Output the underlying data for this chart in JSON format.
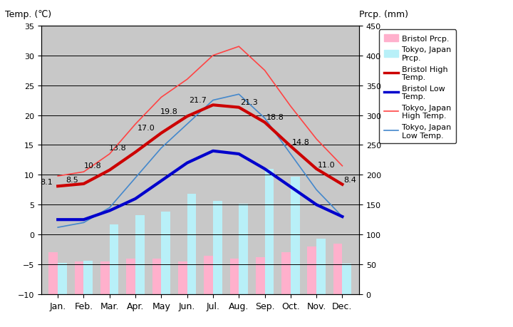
{
  "months": [
    "Jan.",
    "Feb.",
    "Mar.",
    "Apr.",
    "May",
    "Jun.",
    "Jul.",
    "Aug.",
    "Sep.",
    "Oct.",
    "Nov.",
    "Dec."
  ],
  "bristol_high": [
    8.1,
    8.5,
    10.8,
    13.8,
    17.0,
    19.8,
    21.7,
    21.3,
    18.8,
    14.8,
    11.0,
    8.4
  ],
  "bristol_low": [
    2.5,
    2.5,
    4.0,
    6.0,
    9.0,
    12.0,
    14.0,
    13.5,
    11.0,
    8.0,
    5.0,
    3.0
  ],
  "tokyo_high": [
    9.8,
    10.5,
    13.5,
    18.5,
    23.0,
    26.0,
    30.0,
    31.5,
    27.5,
    21.5,
    16.0,
    11.5
  ],
  "tokyo_low": [
    1.2,
    2.0,
    4.5,
    9.5,
    14.5,
    18.5,
    22.5,
    23.5,
    19.5,
    13.5,
    7.5,
    3.0
  ],
  "temp_ylim": [
    -10,
    35
  ],
  "prcp_ylim": [
    0,
    450
  ],
  "bristol_prcp_mm": [
    70,
    55,
    55,
    60,
    60,
    55,
    65,
    60,
    62,
    70,
    80,
    85
  ],
  "tokyo_prcp_mm": [
    52,
    56,
    117,
    133,
    138,
    168,
    156,
    152,
    210,
    197,
    93,
    51
  ],
  "title_left": "Temp. (℃)",
  "title_right": "Prcp. (mm)",
  "bg_color": "#c8c8c8",
  "bristol_high_color": "#cc0000",
  "bristol_low_color": "#0000cc",
  "tokyo_high_color": "#ff4444",
  "tokyo_low_color": "#4488cc",
  "bristol_prcp_color": "#ffb0cc",
  "tokyo_prcp_color": "#b8f0f8",
  "grid_color": "black",
  "legend_labels": [
    "Bristol Prcp.",
    "Tokyo, Japan\nPrcp.",
    "Bristol High\nTemp.",
    "Bristol Low\nTemp.",
    "Tokyo, Japan\nHigh Temp.",
    "Tokyo, Japan\nLow Temp."
  ]
}
